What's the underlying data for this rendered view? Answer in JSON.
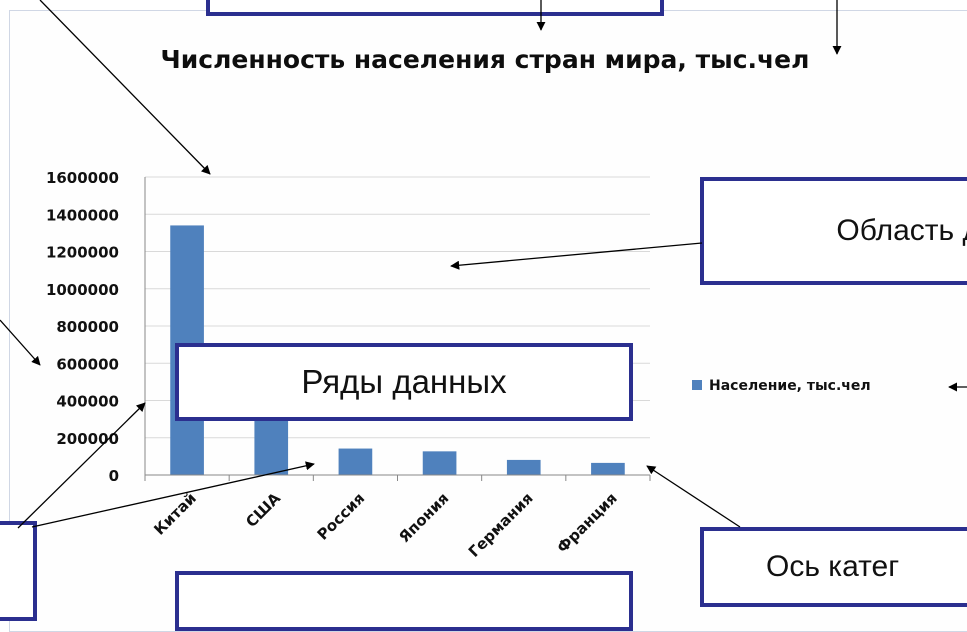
{
  "chart_data": {
    "type": "bar",
    "title": "Численность населения стран мира, тыс.чел",
    "categories": [
      "Китай",
      "США",
      "Россия",
      "Япония",
      "Германия",
      "Франция"
    ],
    "series": [
      {
        "name": "Население, тыс.чел",
        "values": [
          1340000,
          310000,
          142000,
          127000,
          81000,
          65000
        ],
        "color": "#4f81bd"
      }
    ],
    "ylim": [
      0,
      1600000
    ],
    "yticks": [
      0,
      200000,
      400000,
      600000,
      800000,
      1000000,
      1200000,
      1400000,
      1600000
    ],
    "grid": true,
    "legend": "right"
  },
  "callouts": {
    "plot_area": "Область д",
    "data_series": "Ряды данных",
    "category_axis": "Ось катег"
  },
  "colors": {
    "bar": "#4f81bd",
    "callout_border": "#2b2f8f",
    "gridline": "#d9d9d9"
  }
}
